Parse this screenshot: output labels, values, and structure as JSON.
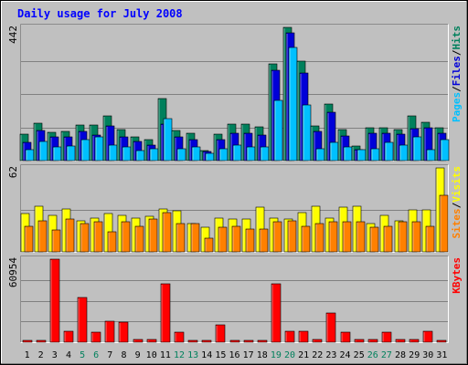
{
  "chart_data": {
    "type": "bar",
    "title": "Daily usage for July 2008",
    "categories": [
      "1",
      "2",
      "3",
      "4",
      "5",
      "6",
      "7",
      "8",
      "9",
      "10",
      "11",
      "12",
      "13",
      "14",
      "15",
      "16",
      "17",
      "18",
      "19",
      "20",
      "21",
      "22",
      "23",
      "24",
      "25",
      "26",
      "27",
      "28",
      "29",
      "30",
      "31"
    ],
    "weekend_days": [
      "5",
      "6",
      "12",
      "13",
      "19",
      "20",
      "26",
      "27"
    ],
    "colors": {
      "title": "#0000ff",
      "hits": "#00805c",
      "files": "#0000d8",
      "pages": "#00c0ff",
      "visits": "#ffff00",
      "sites": "#ff8000",
      "kbytes": "#ff0000",
      "weekday_label": "#000000",
      "weekend_label": "#00805c"
    },
    "panels": [
      {
        "id": "hits_files_pages",
        "max_label": "442",
        "ylim": [
          0,
          442
        ],
        "right_label": [
          {
            "text": "Pages",
            "color": "#00c0ff"
          },
          {
            "text": "/",
            "color": "#000000"
          },
          {
            "text": "Files",
            "color": "#0000d8"
          },
          {
            "text": "/",
            "color": "#000000"
          },
          {
            "text": "Hits",
            "color": "#00805c"
          }
        ],
        "series": [
          {
            "name": "Hits",
            "color": "#00805c",
            "values": [
              88,
              125,
              93,
              97,
              119,
              119,
              149,
              104,
              80,
              70,
              207,
              100,
              92,
              34,
              88,
              120,
              120,
              111,
              320,
              442,
              330,
              115,
              187,
              102,
              47,
              109,
              109,
              104,
              148,
              127,
              108
            ]
          },
          {
            "name": "Files",
            "color": "#0000d8",
            "values": [
              60,
              101,
              78,
              80,
              96,
              85,
              114,
              80,
              65,
              50,
              120,
              80,
              70,
              30,
              70,
              90,
              90,
              85,
              300,
              425,
              291,
              98,
              159,
              83,
              37,
              90,
              90,
              87,
              106,
              108,
              90
            ]
          },
          {
            "name": "Pages",
            "color": "#00c0ff",
            "values": [
              37,
              65,
              45,
              48,
              70,
              80,
              50,
              45,
              34,
              40,
              140,
              40,
              45,
              23,
              40,
              50,
              45,
              45,
              200,
              376,
              185,
              40,
              60,
              45,
              37,
              40,
              60,
              50,
              80,
              37,
              70
            ]
          }
        ]
      },
      {
        "id": "visits_sites",
        "max_label": "62",
        "ylim": [
          0,
          62
        ],
        "right_label": [
          {
            "text": "Sites",
            "color": "#ff8000"
          },
          {
            "text": "/",
            "color": "#000000"
          },
          {
            "text": "Visits",
            "color": "#ffff00"
          }
        ],
        "series": [
          {
            "name": "Visits",
            "color": "#ffff00",
            "values": [
              28,
              34,
              27,
              32,
              23,
              25,
              28,
              27,
              25,
              26,
              32,
              30,
              21,
              18,
              25,
              24,
              24,
              33,
              25,
              24,
              29,
              34,
              25,
              33,
              34,
              21,
              27,
              23,
              31,
              31,
              62
            ]
          },
          {
            "name": "Sites",
            "color": "#ff8000",
            "values": [
              19,
              23,
              16,
              24,
              21,
              22,
              15,
              22,
              19,
              24,
              29,
              21,
              21,
              10,
              18,
              19,
              17,
              17,
              22,
              23,
              19,
              21,
              22,
              22,
              22,
              18,
              19,
              22,
              22,
              19,
              42
            ]
          }
        ]
      },
      {
        "id": "kbytes",
        "max_label": "60954",
        "ylim": [
          0,
          60954
        ],
        "right_label": [
          {
            "text": "KBytes",
            "color": "#ff0000"
          }
        ],
        "series": [
          {
            "name": "KBytes",
            "color": "#ff0000",
            "values": [
              1400,
              1400,
              60954,
              8300,
              33000,
              7500,
              15500,
              14700,
              1800,
              1800,
              43000,
              7500,
              1500,
              1600,
              12700,
              1600,
              1600,
              1600,
              43000,
              8300,
              8300,
              2200,
              21700,
              7200,
              1700,
              1700,
              7400,
              2200,
              2200,
              8300,
              1200
            ]
          }
        ]
      }
    ]
  }
}
